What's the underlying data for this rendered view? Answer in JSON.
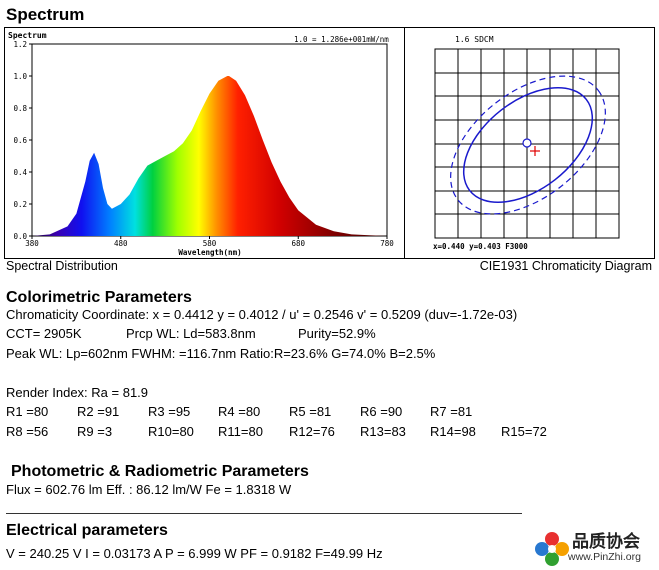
{
  "header": {
    "title": "Spectrum"
  },
  "spectrum_chart": {
    "panel_title": "Spectrum",
    "scale_note": "1.0 = 1.286e+001mW/nm",
    "xlabel": "Wavelength(nm)",
    "x_ticks": [
      "380",
      "480",
      "580",
      "680",
      "780"
    ],
    "y_ticks": [
      "0.0",
      "0.2",
      "0.4",
      "0.6",
      "0.8",
      "1.0",
      "1.2"
    ],
    "caption": "Spectral Distribution"
  },
  "chart_data": {
    "type": "line",
    "x": [
      380,
      400,
      420,
      430,
      440,
      445,
      450,
      455,
      460,
      465,
      470,
      480,
      490,
      500,
      510,
      520,
      530,
      540,
      550,
      560,
      570,
      580,
      590,
      600,
      602,
      610,
      620,
      630,
      640,
      650,
      660,
      670,
      680,
      700,
      720,
      740,
      760,
      780
    ],
    "series": [
      {
        "values": [
          0.0,
          0.01,
          0.06,
          0.14,
          0.34,
          0.47,
          0.52,
          0.45,
          0.3,
          0.2,
          0.17,
          0.2,
          0.26,
          0.36,
          0.44,
          0.47,
          0.5,
          0.53,
          0.58,
          0.66,
          0.78,
          0.89,
          0.97,
          1.0,
          1.0,
          0.97,
          0.88,
          0.75,
          0.6,
          0.46,
          0.34,
          0.24,
          0.16,
          0.07,
          0.03,
          0.01,
          0.005,
          0.0
        ]
      }
    ],
    "xlim": [
      380,
      780
    ],
    "ylim": [
      0,
      1.2
    ]
  },
  "cie_chart": {
    "title": "1.6 SDCM",
    "readout": "x=0.440 y=0.403 F3000",
    "caption": "CIE1931 Chromaticity Diagram"
  },
  "colorimetric": {
    "title": "Colorimetric Parameters",
    "line1": "Chromaticity Coordinate: x = 0.4412 y = 0.4012 / u' = 0.2546 v' = 0.5209 (duv=-1.72e-03)",
    "cct": "CCT=  2905K",
    "prcp": "Prcp WL:   Ld=583.8nm",
    "purity": "Purity=52.9%",
    "peak": "Peak WL:  Lp=602nm  FWHM:   =116.7nm  Ratio:R=23.6% G=74.0% B=2.5%"
  },
  "render": {
    "ra": "Render Index: Ra = 81.9",
    "row1": [
      "R1 =80",
      "R2 =91",
      "R3 =95",
      "R4 =80",
      "R5 =81",
      "R6 =90",
      "R7 =81"
    ],
    "row2": [
      "R8 =56",
      "R9 =3",
      "R10=80",
      "R11=80",
      "R12=76",
      "R13=83",
      "R14=98",
      "R15=72"
    ]
  },
  "photometric": {
    "title": "Photometric & Radiometric Parameters",
    "line": "Flux  = 602.76 lm   Eff. : 86.12 lm/W  Fe  = 1.8318 W"
  },
  "electrical": {
    "title": "Electrical parameters",
    "line": "V = 240.25 V    I = 0.03173 A    P = 6.999 W PF = 0.9182 F=49.99 Hz"
  },
  "watermark": {
    "name": "品质协会",
    "url": "www.PinZhi.org"
  }
}
